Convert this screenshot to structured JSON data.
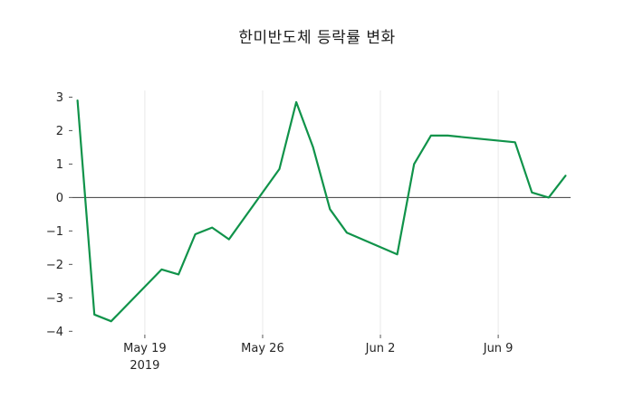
{
  "chart_data": {
    "type": "line",
    "title": "한미반도체 등락률 변화",
    "xlabel": "",
    "ylabel": "",
    "legend": "none",
    "grid": "vertical-faint",
    "zero_line": true,
    "ylim": [
      -4.1,
      3.2
    ],
    "xlim_day_offsets": [
      -0.3,
      29.3
    ],
    "y_ticks": [
      {
        "value": 3,
        "label": "3"
      },
      {
        "value": 2,
        "label": "2"
      },
      {
        "value": 1,
        "label": "1"
      },
      {
        "value": 0,
        "label": "0"
      },
      {
        "value": -1,
        "label": "−1"
      },
      {
        "value": -2,
        "label": "−2"
      },
      {
        "value": -3,
        "label": "−3"
      },
      {
        "value": -4,
        "label": "−4"
      }
    ],
    "x_ticks": [
      {
        "label": "May 19",
        "sublabel": "2019",
        "day_offset": 4
      },
      {
        "label": "May 26",
        "sublabel": "",
        "day_offset": 11
      },
      {
        "label": "Jun 2",
        "sublabel": "",
        "day_offset": 18
      },
      {
        "label": "Jun 9",
        "sublabel": "",
        "day_offset": 25
      }
    ],
    "series": [
      {
        "name": "daily-change-rate-pct",
        "color": "#10934a",
        "dates": [
          "May 15",
          "May 16",
          "May 17",
          "May 20",
          "May 21",
          "May 22",
          "May 23",
          "May 24",
          "May 27",
          "May 28",
          "May 29",
          "May 30",
          "May 31",
          "Jun 3",
          "Jun 4",
          "Jun 5",
          "Jun 6",
          "Jun 7",
          "Jun 10",
          "Jun 11",
          "Jun 12",
          "Jun 13"
        ],
        "day_offsets": [
          0,
          1,
          2,
          5,
          6,
          7,
          8,
          9,
          12,
          13,
          14,
          15,
          16,
          19,
          20,
          21,
          22,
          23,
          26,
          27,
          28,
          29
        ],
        "values": [
          2.9,
          -3.5,
          -3.7,
          -2.15,
          -2.3,
          -1.1,
          -0.9,
          -1.25,
          0.85,
          2.85,
          1.5,
          -0.35,
          -1.05,
          -1.7,
          1.0,
          1.85,
          1.85,
          1.8,
          1.65,
          0.15,
          0.0,
          0.65
        ]
      }
    ],
    "colors": {
      "background": "#ffffff",
      "grid": "#e9e9e9",
      "zero_line": "#3c3c3c",
      "tick_mark": "#555555",
      "tick_text": "#262626",
      "title_text": "#1a1a1a"
    }
  }
}
